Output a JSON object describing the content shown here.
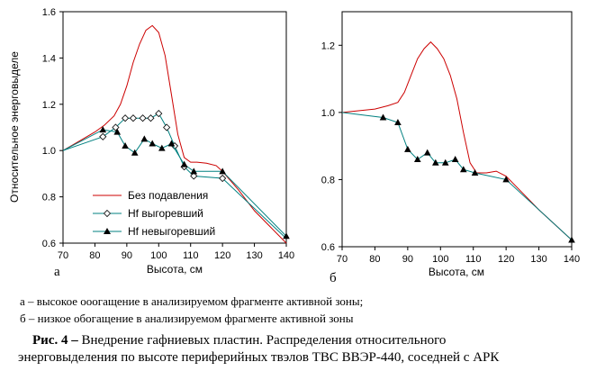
{
  "chart_data": [
    {
      "id": "a",
      "panel_label": "а",
      "type": "line",
      "xlabel": "Высота, см",
      "ylabel": "Относительное энерговыделе",
      "xlim": [
        70,
        140
      ],
      "ylim": [
        0.6,
        1.6
      ],
      "xticks": [
        70,
        80,
        90,
        100,
        110,
        120,
        130,
        140
      ],
      "yticks": [
        0.6,
        0.8,
        1.0,
        1.2,
        1.4,
        1.6
      ],
      "ytick_labels": [
        "0.6",
        "0.8",
        "1.0",
        "1.2",
        "1.4",
        "1.6"
      ],
      "legend_position": "lower-left",
      "series": [
        {
          "name": "Без подавления",
          "color": "#cc0000",
          "marker": "none",
          "x": [
            70,
            75,
            80,
            83,
            86,
            88,
            90,
            92,
            94,
            96,
            98,
            100,
            102,
            104,
            106,
            108,
            110,
            112,
            115,
            118,
            120,
            125,
            130,
            135,
            140
          ],
          "y": [
            1.0,
            1.04,
            1.08,
            1.11,
            1.15,
            1.2,
            1.28,
            1.38,
            1.46,
            1.52,
            1.54,
            1.51,
            1.41,
            1.24,
            1.07,
            0.97,
            0.95,
            0.95,
            0.945,
            0.935,
            0.91,
            0.83,
            0.74,
            0.67,
            0.6
          ]
        },
        {
          "name": "Hf выгоревший",
          "color": "#008080",
          "marker": "diamond",
          "x": [
            70,
            82.5,
            86.5,
            89.5,
            92,
            95,
            97.5,
            100,
            102.5,
            105,
            108,
            111,
            120,
            140
          ],
          "y": [
            1.0,
            1.06,
            1.1,
            1.14,
            1.14,
            1.14,
            1.14,
            1.16,
            1.1,
            1.02,
            0.93,
            0.89,
            0.88,
            0.62
          ],
          "markers_x": [
            82.5,
            86.5,
            89.5,
            92,
            95,
            97.5,
            100,
            102.5,
            105,
            108,
            111,
            120
          ],
          "markers_y": [
            1.06,
            1.1,
            1.14,
            1.14,
            1.14,
            1.14,
            1.16,
            1.1,
            1.02,
            0.93,
            0.89,
            0.88
          ]
        },
        {
          "name": "Hf невыгоревший",
          "color": "#008080",
          "marker": "triangle",
          "x": [
            70,
            82.5,
            87,
            89.5,
            92.5,
            95.5,
            98,
            101,
            104,
            108,
            111,
            120,
            140
          ],
          "y": [
            1.0,
            1.09,
            1.08,
            1.02,
            0.99,
            1.05,
            1.03,
            1.01,
            1.03,
            0.94,
            0.91,
            0.91,
            0.63
          ],
          "markers_x": [
            82.5,
            87,
            89.5,
            92.5,
            95.5,
            98,
            101,
            104,
            108,
            111,
            120,
            140
          ],
          "markers_y": [
            1.09,
            1.08,
            1.02,
            0.99,
            1.05,
            1.03,
            1.01,
            1.03,
            0.94,
            0.91,
            0.91,
            0.63
          ]
        }
      ]
    },
    {
      "id": "b",
      "panel_label": "б",
      "type": "line",
      "xlabel": "Высота, см",
      "ylabel": "",
      "xlim": [
        70,
        140
      ],
      "ylim": [
        0.6,
        1.3
      ],
      "xticks": [
        70,
        80,
        90,
        100,
        110,
        120,
        130,
        140
      ],
      "yticks": [
        0.6,
        0.8,
        1.0,
        1.2
      ],
      "ytick_labels": [
        "0.6",
        "0.8",
        "1.0",
        "1.2"
      ],
      "series": [
        {
          "name": "",
          "color": "#cc0000",
          "marker": "none",
          "x": [
            70,
            75,
            80,
            84,
            87,
            89,
            91,
            93,
            95,
            97,
            99,
            101,
            103,
            105,
            107,
            109,
            111,
            114,
            117,
            120,
            125,
            130,
            135,
            140
          ],
          "y": [
            1.0,
            1.005,
            1.01,
            1.02,
            1.03,
            1.06,
            1.11,
            1.16,
            1.19,
            1.21,
            1.19,
            1.16,
            1.11,
            1.04,
            0.94,
            0.85,
            0.82,
            0.82,
            0.825,
            0.81,
            0.76,
            0.71,
            0.665,
            0.62
          ]
        },
        {
          "name": "",
          "color": "#008080",
          "marker": "triangle",
          "x": [
            70,
            82.5,
            87,
            90,
            93,
            96,
            98.5,
            101.5,
            104.5,
            107,
            110.5,
            120,
            140
          ],
          "y": [
            1.0,
            0.985,
            0.97,
            0.89,
            0.86,
            0.88,
            0.85,
            0.85,
            0.86,
            0.83,
            0.82,
            0.8,
            0.62
          ],
          "markers_x": [
            82.5,
            87,
            90,
            93,
            96,
            98.5,
            101.5,
            104.5,
            107,
            110.5,
            120,
            140
          ],
          "markers_y": [
            0.985,
            0.97,
            0.89,
            0.86,
            0.88,
            0.85,
            0.85,
            0.86,
            0.83,
            0.82,
            0.8,
            0.62
          ]
        }
      ]
    }
  ],
  "notes": [
    "а – высокое ооогащение в анализируемом фрагменте активной зоны;",
    "б – низкое обогащение в анализируемом фрагменте активной зоны"
  ],
  "caption": {
    "prefix": "Рис. 4 –",
    "line1": " Внедрение гафниевых пластин. Распределения относительного",
    "line2": "энерговыделения по высоте периферийных твэлов ТВС ВВЭР-440, соседней с АРК"
  }
}
